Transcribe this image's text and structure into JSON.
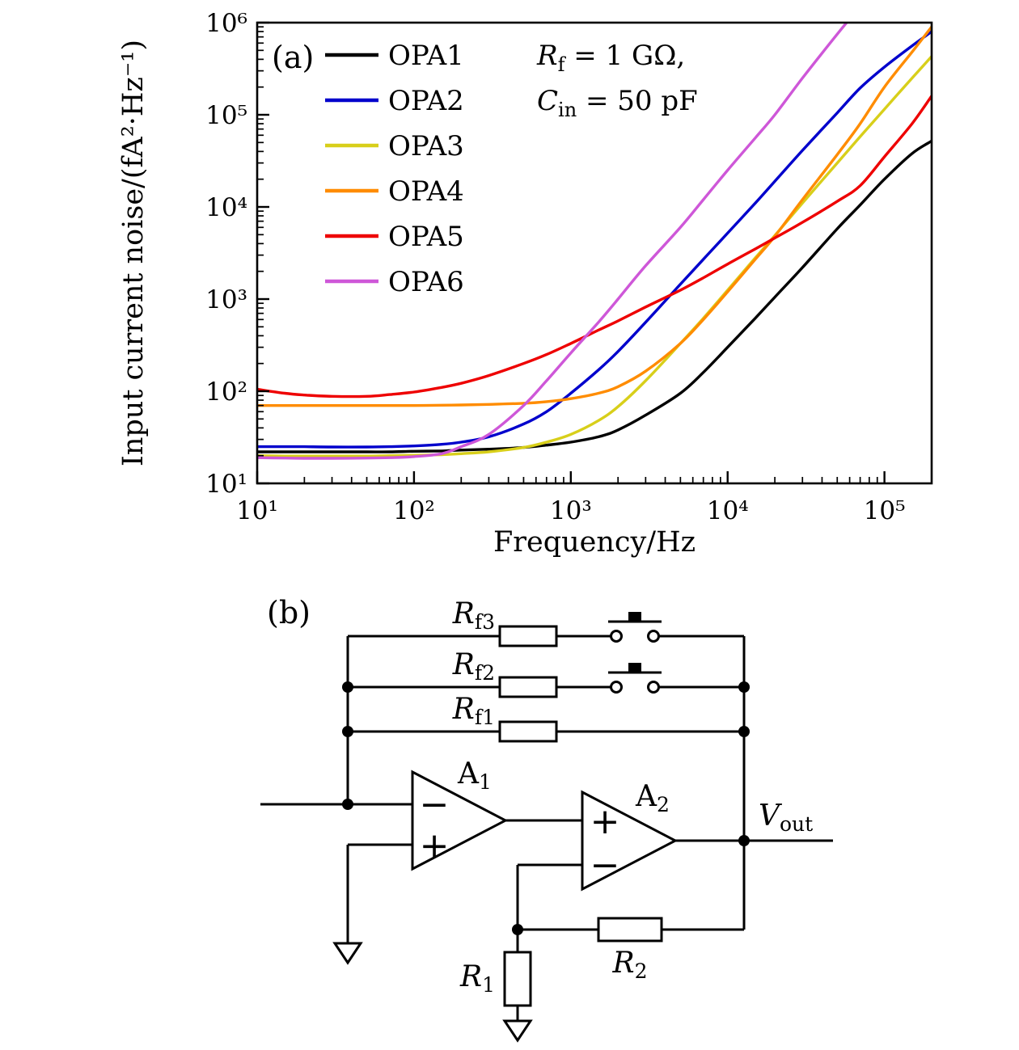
{
  "panel_a": {
    "label": "(a)",
    "annotation": {
      "line1": {
        "v": "R",
        "s": "f",
        "t": " = 1 GΩ,"
      },
      "line2": {
        "v": "C",
        "s": "in",
        "t": " = 50 pF"
      }
    }
  },
  "chart_data": {
    "type": "line",
    "title": "",
    "xlabel": "Frequency/Hz",
    "ylabel": "Input current noise/(fA²·Hz⁻¹)",
    "x_scale": "log",
    "y_scale": "log",
    "xlim": [
      10,
      200000
    ],
    "ylim": [
      10,
      1000000
    ],
    "grid": false,
    "legend_position": "top-left inside",
    "x_ticks": [
      {
        "e": 1,
        "label": "10¹"
      },
      {
        "e": 2,
        "label": "10²"
      },
      {
        "e": 3,
        "label": "10³"
      },
      {
        "e": 4,
        "label": "10⁴"
      },
      {
        "e": 5,
        "label": "10⁵"
      }
    ],
    "y_ticks": [
      {
        "e": 1,
        "label": "10¹"
      },
      {
        "e": 2,
        "label": "10²"
      },
      {
        "e": 3,
        "label": "10³"
      },
      {
        "e": 4,
        "label": "10⁴"
      },
      {
        "e": 5,
        "label": "10⁵"
      },
      {
        "e": 6,
        "label": "10⁶"
      }
    ],
    "x": [
      10,
      15,
      20,
      30,
      50,
      70,
      100,
      150,
      200,
      300,
      500,
      700,
      1000,
      1500,
      2000,
      3000,
      5000,
      7000,
      10000,
      15000,
      20000,
      30000,
      50000,
      70000,
      100000,
      150000,
      200000
    ],
    "series": [
      {
        "name": "OPA1",
        "color": "#000000",
        "y": [
          22,
          22,
          22,
          22,
          22,
          22,
          22.3,
          22.5,
          23,
          23.5,
          24.5,
          26,
          28,
          32,
          38,
          55,
          95,
          160,
          300,
          620,
          1050,
          2200,
          5800,
          10500,
          20000,
          38000,
          52000
        ]
      },
      {
        "name": "OPA2",
        "color": "#0000cc",
        "y": [
          25,
          25,
          25,
          24.8,
          24.8,
          25,
          25.5,
          26.5,
          28,
          32,
          44,
          60,
          95,
          170,
          270,
          560,
          1450,
          2700,
          5200,
          11000,
          19000,
          41000,
          105000,
          195000,
          330000,
          560000,
          800000
        ]
      },
      {
        "name": "OPA3",
        "color": "#d8cf1a",
        "y": [
          20,
          19.8,
          19.8,
          19.8,
          19.8,
          20,
          20.2,
          20.5,
          21,
          22,
          24.5,
          28,
          34,
          48,
          68,
          130,
          330,
          620,
          1250,
          2800,
          4900,
          11000,
          30000,
          58000,
          115000,
          250000,
          430000
        ]
      },
      {
        "name": "OPA4",
        "color": "#ff8c00",
        "y": [
          70,
          70,
          70,
          70,
          70,
          70,
          70,
          70.5,
          71,
          72,
          74,
          77,
          83,
          95,
          112,
          165,
          330,
          600,
          1200,
          2700,
          4800,
          12000,
          37000,
          80000,
          200000,
          480000,
          900000
        ]
      },
      {
        "name": "OPA5",
        "color": "#ee0000",
        "y": [
          105,
          95,
          91,
          88,
          88,
          92,
          98,
          110,
          122,
          148,
          200,
          250,
          330,
          460,
          580,
          820,
          1250,
          1700,
          2400,
          3500,
          4600,
          6800,
          11500,
          17000,
          35000,
          80000,
          160000
        ]
      },
      {
        "name": "OPA6",
        "color": "#ce57d8",
        "y": [
          19,
          18.8,
          18.7,
          18.7,
          18.8,
          19,
          19.5,
          21,
          25,
          34,
          70,
          130,
          260,
          560,
          1000,
          2300,
          6000,
          12000,
          25000,
          56000,
          100000,
          250000,
          750000,
          1500000,
          3000000,
          6600000,
          12000000
        ]
      }
    ]
  },
  "panel_b": {
    "label": "(b)",
    "labels": {
      "rf3": {
        "v": "R",
        "s": "f3"
      },
      "rf2": {
        "v": "R",
        "s": "f2"
      },
      "rf1": {
        "v": "R",
        "s": "f1"
      },
      "a1": {
        "v": "A",
        "s": "1"
      },
      "a2": {
        "v": "A",
        "s": "2"
      },
      "vout": {
        "v": "V",
        "s": "out"
      },
      "r1": {
        "v": "R",
        "s": "1"
      },
      "r2": {
        "v": "R",
        "s": "2"
      },
      "plus": "+",
      "minus": "−"
    }
  }
}
